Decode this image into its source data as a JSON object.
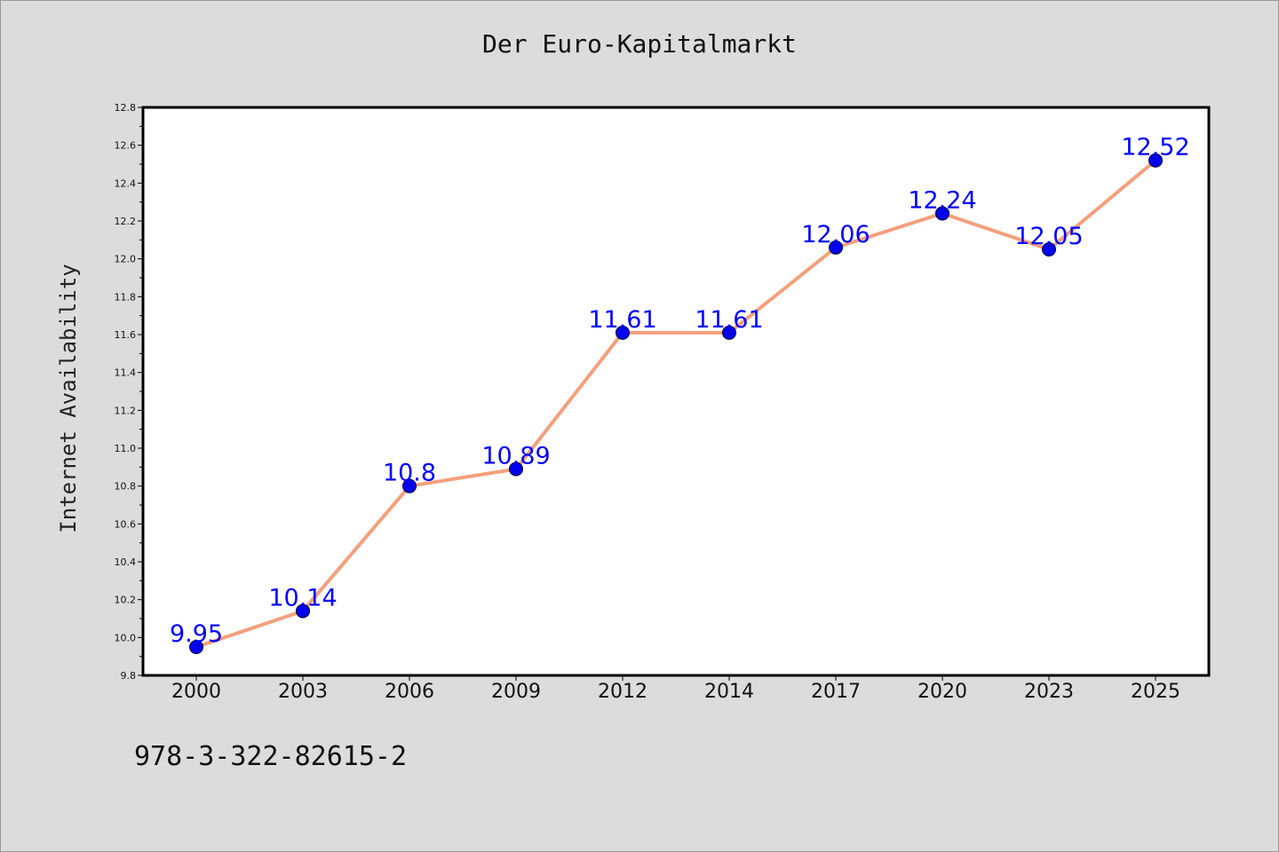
{
  "chart_data": {
    "type": "line",
    "title": "Der Euro-Kapitalmarkt",
    "ylabel": "Internet Availability",
    "xlabel": "",
    "categories": [
      "2000",
      "2003",
      "2006",
      "2009",
      "2012",
      "2014",
      "2017",
      "2020",
      "2023",
      "2025"
    ],
    "series": [
      {
        "values": [
          9.95,
          10.14,
          10.8,
          10.89,
          11.61,
          11.61,
          12.06,
          12.24,
          12.05,
          12.52
        ],
        "data_labels": [
          "9.95",
          "10.14",
          "10.8",
          "10.89",
          "11.61",
          "11.61",
          "12.06",
          "12.24",
          "12.05",
          "12.52"
        ],
        "line_color": "#f4a07c",
        "marker_color": "#0000ee"
      }
    ],
    "ylim": [
      9.8,
      12.8
    ],
    "yticks": [
      "9.8",
      "10.0",
      "10.2",
      "10.4",
      "10.6",
      "10.8",
      "11.0",
      "11.2",
      "11.4",
      "11.6",
      "11.8",
      "12.0",
      "12.2",
      "12.4",
      "12.6",
      "12.8"
    ],
    "grid": false,
    "legend": false,
    "label_color": "#0000ff"
  },
  "footer": {
    "code": "978-3-322-82615-2"
  }
}
